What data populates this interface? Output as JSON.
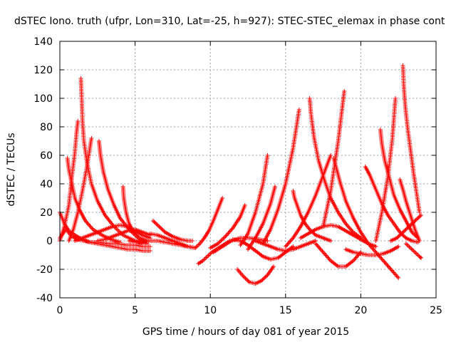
{
  "chart_data": {
    "type": "scatter",
    "title": "dSTEC Iono. truth (ufpr, Lon=310, Lat=-25, h=927): STEC-STEC_elemax in phase cont",
    "xlabel": "GPS time / hours of day 081 of year 2015",
    "ylabel": "dSTEC  / TECUs",
    "xlim": [
      0,
      25
    ],
    "ylim": [
      -40,
      140
    ],
    "xticks": [
      0,
      5,
      10,
      15,
      20,
      25
    ],
    "yticks": [
      -40,
      -20,
      0,
      20,
      40,
      60,
      80,
      100,
      120,
      140
    ],
    "grid": true,
    "marker": "+",
    "color": "#ff0000",
    "series": [
      {
        "x": [
          0.0,
          0.3,
          0.6,
          1.0,
          1.5,
          2.0,
          2.5,
          3.0,
          3.5,
          4.0,
          4.5,
          5.0,
          5.5,
          6.0
        ],
        "y": [
          20,
          12,
          7,
          4,
          1,
          -1,
          -2,
          -3,
          -4,
          -5,
          -6,
          -6,
          -7,
          -7
        ]
      },
      {
        "x": [
          0.0,
          0.4,
          0.8,
          1.2,
          1.6,
          2.0,
          2.6,
          3.2,
          3.8,
          4.4,
          5.0,
          5.5,
          6.0
        ],
        "y": [
          2,
          8,
          3,
          1,
          0,
          -1,
          -1,
          -2,
          -2,
          -3,
          -3,
          -4,
          -4
        ]
      },
      {
        "x": [
          0.5,
          0.6,
          0.8,
          1.0,
          1.3,
          1.7,
          2.2,
          2.8,
          3.4,
          4.0
        ],
        "y": [
          58,
          50,
          40,
          30,
          22,
          14,
          8,
          4,
          1,
          -1
        ]
      },
      {
        "x": [
          1.4,
          1.45,
          1.5,
          1.6,
          1.8,
          2.1,
          2.5,
          3.0,
          3.6,
          4.2,
          5.0,
          5.5
        ],
        "y": [
          114,
          100,
          85,
          70,
          55,
          40,
          28,
          18,
          10,
          4,
          0,
          -2
        ]
      },
      {
        "x": [
          0.0,
          0.3,
          0.6,
          0.8,
          1.0,
          1.1,
          1.2
        ],
        "y": [
          0,
          10,
          25,
          45,
          62,
          75,
          84
        ]
      },
      {
        "x": [
          0.6,
          0.9,
          1.2,
          1.5,
          1.8,
          2.0,
          2.1
        ],
        "y": [
          0,
          8,
          20,
          35,
          52,
          65,
          72
        ]
      },
      {
        "x": [
          2.6,
          2.7,
          2.9,
          3.2,
          3.6,
          4.0,
          4.6,
          5.2,
          5.8
        ],
        "y": [
          70,
          60,
          48,
          36,
          25,
          16,
          8,
          2,
          -2
        ]
      },
      {
        "x": [
          4.2,
          4.25,
          4.4,
          4.6,
          4.9,
          5.3,
          5.8
        ],
        "y": [
          38,
          30,
          20,
          12,
          6,
          2,
          0
        ]
      },
      {
        "x": [
          1.0,
          1.5,
          2.0,
          2.5,
          3.0,
          3.5,
          4.0,
          4.5,
          5.0,
          5.5,
          6.0
        ],
        "y": [
          0,
          2,
          4,
          6,
          8,
          10,
          11,
          10,
          7,
          4,
          2
        ]
      },
      {
        "x": [
          2.5,
          3.0,
          3.5,
          4.0,
          4.5,
          5.0,
          5.5,
          6.0
        ],
        "y": [
          0,
          1,
          3,
          5,
          7,
          8,
          6,
          4
        ]
      },
      {
        "x": [
          6.0,
          6.5,
          7.0,
          7.5,
          8.0,
          8.5,
          9.0
        ],
        "y": [
          5,
          4,
          2,
          0,
          -2,
          -4,
          -5
        ]
      },
      {
        "x": [
          6.2,
          6.6,
          7.0,
          7.5,
          8.0,
          8.5,
          8.8
        ],
        "y": [
          14,
          10,
          6,
          3,
          1,
          0,
          0
        ]
      },
      {
        "x": [
          4.6,
          5.0,
          5.5,
          6.0,
          6.5,
          7.0,
          7.5,
          8.0,
          8.5,
          9.0
        ],
        "y": [
          0,
          -1,
          -1,
          0,
          0,
          -1,
          -2,
          -3,
          -4,
          -5
        ]
      },
      {
        "x": [
          9.0,
          9.3,
          9.6,
          9.9,
          10.2,
          10.5,
          10.8
        ],
        "y": [
          -5,
          -2,
          2,
          7,
          14,
          22,
          30
        ]
      },
      {
        "x": [
          9.2,
          9.5,
          9.8,
          10.1,
          10.4,
          10.7,
          11.0,
          11.3
        ],
        "y": [
          -16,
          -14,
          -11,
          -8,
          -6,
          -4,
          -2,
          0
        ]
      },
      {
        "x": [
          10.0,
          10.5,
          11.0,
          11.5,
          12.0,
          12.3
        ],
        "y": [
          -5,
          -2,
          3,
          9,
          17,
          25
        ]
      },
      {
        "x": [
          10.2,
          10.8,
          11.4,
          12.0,
          12.6,
          13.2,
          13.8
        ],
        "y": [
          -8,
          -4,
          0,
          2,
          2,
          1,
          0
        ]
      },
      {
        "x": [
          11.8,
          12.2,
          12.6,
          13.0,
          13.4,
          13.8,
          14.2
        ],
        "y": [
          -20,
          -25,
          -29,
          -30,
          -28,
          -24,
          -18
        ]
      },
      {
        "x": [
          11.5,
          12.0,
          12.5,
          13.0,
          13.5,
          14.0,
          14.5,
          15.0,
          15.5
        ],
        "y": [
          1,
          0,
          -3,
          -7,
          -11,
          -13,
          -12,
          -8,
          -4
        ]
      },
      {
        "x": [
          12.0,
          12.5,
          13.0,
          13.5,
          13.8
        ],
        "y": [
          -3,
          5,
          20,
          40,
          60
        ]
      },
      {
        "x": [
          12.5,
          13.0,
          13.5,
          14.0,
          14.3
        ],
        "y": [
          -6,
          2,
          12,
          26,
          38
        ]
      },
      {
        "x": [
          13.0,
          13.5,
          14.0,
          14.5,
          15.0,
          15.5,
          16.0,
          16.5,
          17.0
        ],
        "y": [
          0,
          -2,
          -4,
          -6,
          -7,
          -6,
          -4,
          -2,
          0
        ]
      },
      {
        "x": [
          13.5,
          14.0,
          14.5,
          15.0,
          15.5,
          15.9
        ],
        "y": [
          -2,
          8,
          22,
          40,
          65,
          92
        ]
      },
      {
        "x": [
          15.0,
          15.5,
          16.0,
          16.5,
          17.0,
          17.5,
          18.0
        ],
        "y": [
          -4,
          2,
          10,
          20,
          32,
          46,
          60
        ]
      },
      {
        "x": [
          15.5,
          15.6,
          15.8,
          16.0,
          16.3,
          16.6,
          17.0,
          17.5,
          18.0
        ],
        "y": [
          35,
          30,
          24,
          18,
          12,
          8,
          4,
          2,
          0
        ]
      },
      {
        "x": [
          16.6,
          16.7,
          16.9,
          17.2,
          17.6,
          18.0,
          18.5,
          19.0,
          19.5,
          20.0
        ],
        "y": [
          100,
          88,
          72,
          56,
          42,
          30,
          20,
          12,
          6,
          2
        ]
      },
      {
        "x": [
          16.0,
          16.5,
          17.0,
          17.5,
          18.0,
          18.5,
          19.0,
          19.5,
          20.0,
          20.5,
          21.0
        ],
        "y": [
          2,
          5,
          8,
          10,
          11,
          10,
          7,
          4,
          1,
          -2,
          -4
        ]
      },
      {
        "x": [
          17.0,
          17.5,
          18.0,
          18.5,
          19.0,
          19.5,
          20.0
        ],
        "y": [
          -2,
          -8,
          -14,
          -18,
          -18,
          -14,
          -8
        ]
      },
      {
        "x": [
          17.5,
          18.0,
          18.5,
          18.9
        ],
        "y": [
          10,
          35,
          70,
          105
        ]
      },
      {
        "x": [
          18.2,
          18.6,
          19.0,
          19.5,
          20.0,
          20.5,
          21.0,
          21.5,
          22.0,
          22.5
        ],
        "y": [
          58,
          42,
          28,
          16,
          6,
          -2,
          -8,
          -14,
          -20,
          -26
        ]
      },
      {
        "x": [
          19.0,
          19.5,
          20.0,
          20.5,
          21.0,
          21.5,
          22.0,
          22.5
        ],
        "y": [
          -6,
          -8,
          -9,
          -10,
          -10,
          -9,
          -7,
          -4
        ]
      },
      {
        "x": [
          20.3,
          20.6,
          21.0,
          21.4,
          21.8,
          22.2,
          22.6,
          23.0,
          23.4,
          23.8
        ],
        "y": [
          52,
          46,
          36,
          26,
          18,
          12,
          6,
          2,
          0,
          -1
        ]
      },
      {
        "x": [
          21.3,
          21.4,
          21.6,
          21.9,
          22.2,
          22.6,
          23.0,
          23.4,
          23.8
        ],
        "y": [
          78,
          68,
          56,
          44,
          32,
          22,
          14,
          6,
          2
        ]
      },
      {
        "x": [
          21.0,
          21.4,
          21.8,
          22.1,
          22.3
        ],
        "y": [
          0,
          20,
          45,
          72,
          100
        ]
      },
      {
        "x": [
          22.0,
          22.4,
          22.8,
          23.2,
          23.6,
          24.0
        ],
        "y": [
          0,
          2,
          6,
          10,
          14,
          18
        ]
      },
      {
        "x": [
          22.8,
          22.85,
          22.95,
          23.1,
          23.3,
          23.5,
          23.7,
          23.9
        ],
        "y": [
          123,
          110,
          95,
          80,
          64,
          48,
          34,
          20
        ]
      },
      {
        "x": [
          22.6,
          22.8,
          23.0,
          23.3,
          23.6,
          23.9
        ],
        "y": [
          43,
          36,
          28,
          18,
          8,
          0
        ]
      },
      {
        "x": [
          23.0,
          23.3,
          23.6,
          23.9,
          24.0
        ],
        "y": [
          -2,
          -5,
          -8,
          -11,
          -12
        ]
      }
    ]
  }
}
